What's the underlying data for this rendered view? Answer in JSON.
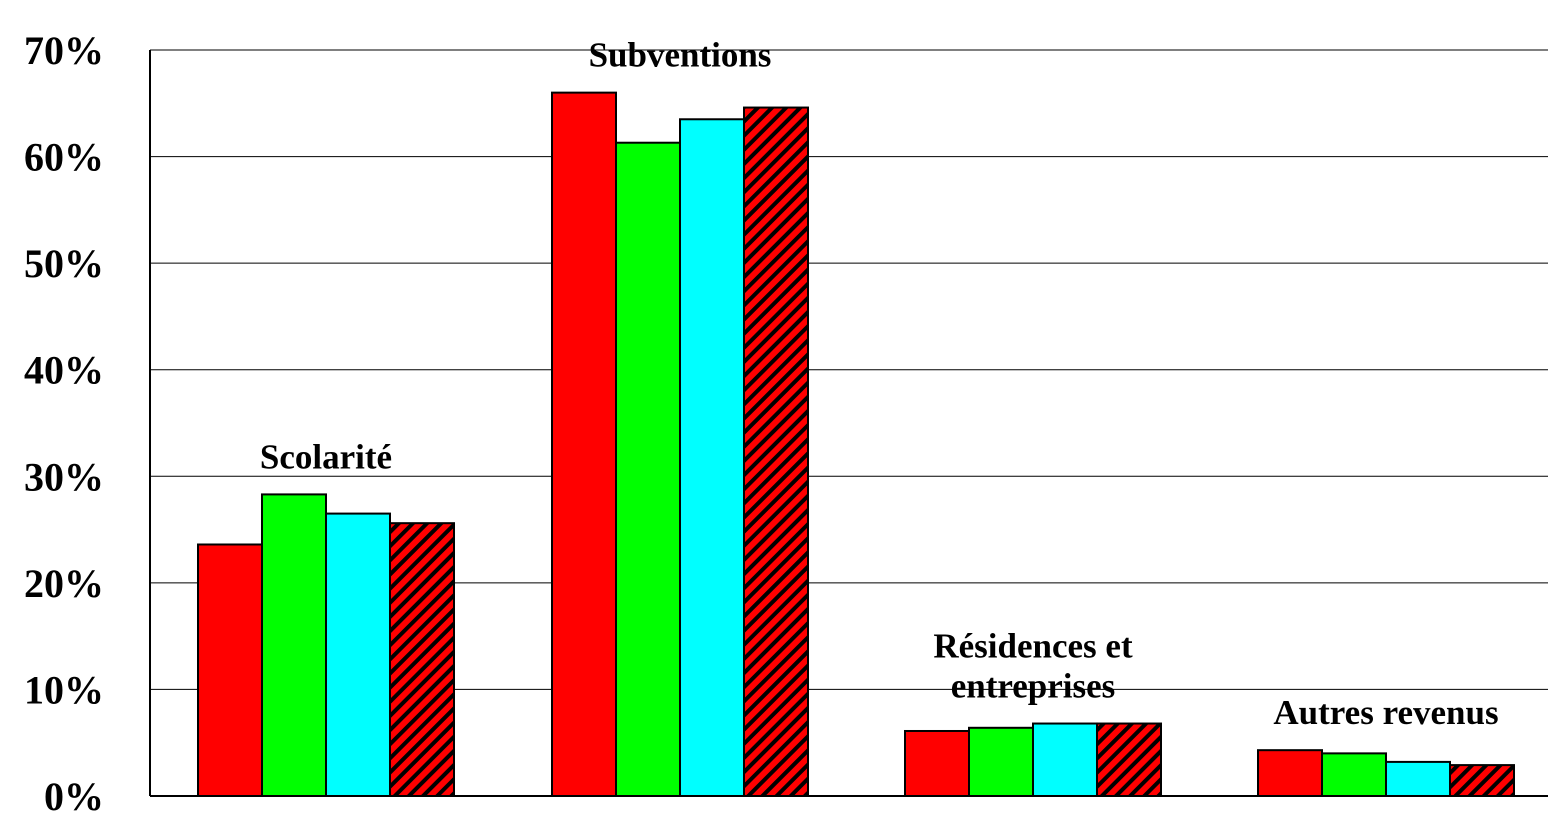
{
  "chart_data": {
    "type": "bar",
    "title": "",
    "xlabel": "",
    "ylabel": "",
    "ylim": [
      0,
      70
    ],
    "y_ticks": [
      0,
      10,
      20,
      30,
      40,
      50,
      60,
      70
    ],
    "y_tick_labels": [
      "0%",
      "10%",
      "20%",
      "30%",
      "40%",
      "50%",
      "60%",
      "70%"
    ],
    "grid": true,
    "legend": "none",
    "categories": [
      "Scolarité",
      "Subventions",
      "Résidences et entreprises",
      "Autres revenus"
    ],
    "category_label_lines": [
      [
        "Scolarité"
      ],
      [
        "Subventions"
      ],
      [
        "Résidences et",
        "entreprises"
      ],
      [
        "Autres revenus"
      ]
    ],
    "series": [
      {
        "values": [
          23.6,
          66.0,
          6.1,
          4.3
        ],
        "color": "#ff0000",
        "pattern": "solid"
      },
      {
        "values": [
          28.3,
          61.3,
          6.4,
          4.0
        ],
        "color": "#00ff00",
        "pattern": "solid"
      },
      {
        "values": [
          26.5,
          63.5,
          6.8,
          3.2
        ],
        "color": "#00ffff",
        "pattern": "solid"
      },
      {
        "values": [
          25.6,
          64.6,
          6.8,
          2.9
        ],
        "color": "#ff0000",
        "pattern": "diagonal-hatch",
        "hatch_color": "#000000"
      }
    ]
  }
}
